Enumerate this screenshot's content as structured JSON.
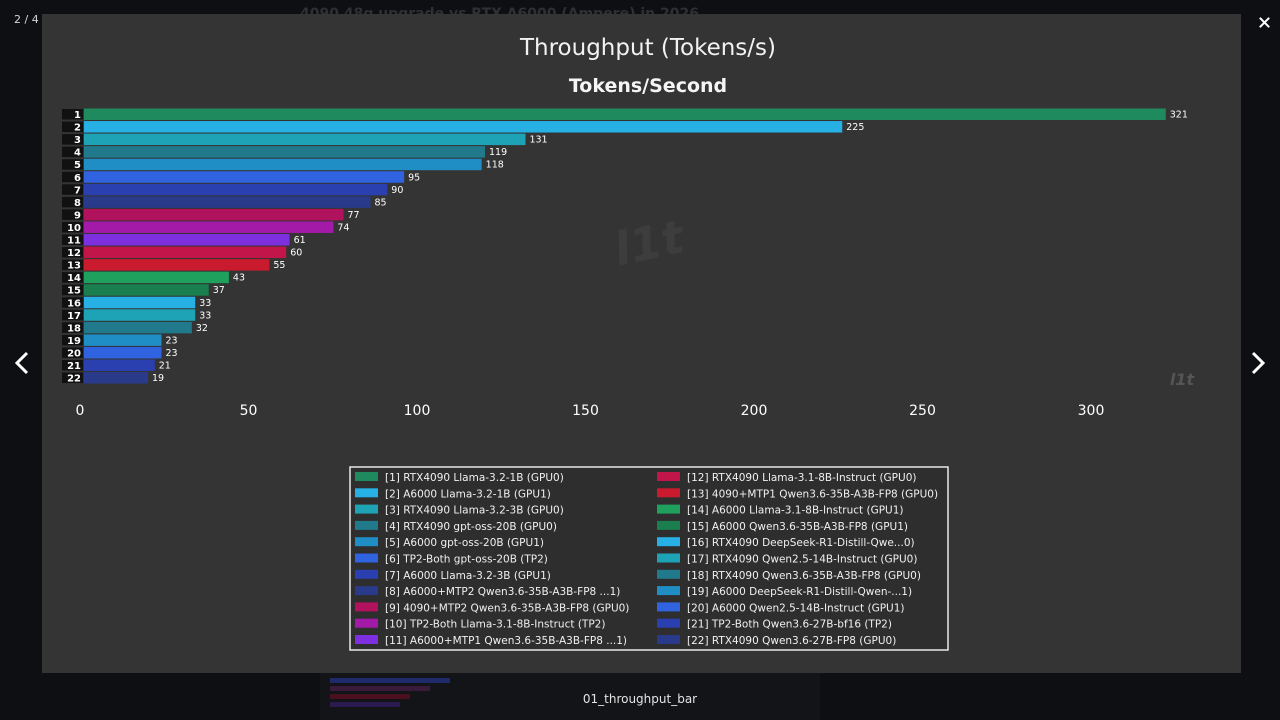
{
  "viewer": {
    "counter": "2 / 4",
    "caption": "01_throughput_bar",
    "background_title": "4090 48g upgrade vs RTX A6000 (Ampere) in 2026"
  },
  "toolbar": [
    {
      "name": "download",
      "icon": "download-icon"
    },
    {
      "name": "image",
      "icon": "image-icon"
    },
    {
      "name": "info",
      "icon": "info-icon"
    },
    {
      "name": "zoom",
      "icon": "zoom-icon"
    },
    {
      "name": "quote",
      "icon": "quote-icon"
    },
    {
      "name": "close",
      "icon": "close-icon"
    }
  ],
  "figure": {
    "suptitle": "Throughput (Tokens/s)",
    "watermark": "l1t"
  },
  "chart_data": {
    "type": "bar",
    "orientation": "horizontal",
    "title": "Tokens/Second",
    "xlim": [
      0,
      325
    ],
    "xticks": [
      0,
      50,
      100,
      150,
      200,
      250,
      300
    ],
    "grid": false,
    "legend_position": "bottom-center",
    "categories": [
      "1",
      "2",
      "3",
      "4",
      "5",
      "6",
      "7",
      "8",
      "9",
      "10",
      "11",
      "12",
      "13",
      "14",
      "15",
      "16",
      "17",
      "18",
      "19",
      "20",
      "21",
      "22"
    ],
    "values": [
      321,
      225,
      131,
      119,
      118,
      95,
      90,
      85,
      77,
      74,
      61,
      60,
      55,
      43,
      37,
      33,
      33,
      32,
      23,
      23,
      21,
      19
    ],
    "colors": [
      "#1f8a5e",
      "#26b0e3",
      "#1ea3b6",
      "#207a8c",
      "#1e8ec4",
      "#2f63e0",
      "#2a3fb0",
      "#293a8a",
      "#b0125e",
      "#a31aa8",
      "#7e2fe0",
      "#c2154a",
      "#c91a2e",
      "#1fa05c",
      "#1a7e4e",
      "#26b0e3",
      "#1ea3b6",
      "#207a8c",
      "#1e8ec4",
      "#2f63e0",
      "#2a3fb0",
      "#293a8a"
    ],
    "legend": [
      "[1] RTX4090 Llama-3.2-1B (GPU0)",
      "[2] A6000 Llama-3.2-1B (GPU1)",
      "[3] RTX4090 Llama-3.2-3B (GPU0)",
      "[4] RTX4090 gpt-oss-20B (GPU0)",
      "[5] A6000 gpt-oss-20B (GPU1)",
      "[6] TP2-Both gpt-oss-20B (TP2)",
      "[7] A6000 Llama-3.2-3B (GPU1)",
      "[8] A6000+MTP2 Qwen3.6-35B-A3B-FP8 ...1)",
      "[9] 4090+MTP2 Qwen3.6-35B-A3B-FP8 (GPU0)",
      "[10] TP2-Both Llama-3.1-8B-Instruct (TP2)",
      "[11] A6000+MTP1 Qwen3.6-35B-A3B-FP8 ...1)",
      "[12] RTX4090 Llama-3.1-8B-Instruct (GPU0)",
      "[13] 4090+MTP1 Qwen3.6-35B-A3B-FP8 (GPU0)",
      "[14] A6000 Llama-3.1-8B-Instruct (GPU1)",
      "[15] A6000 Qwen3.6-35B-A3B-FP8 (GPU1)",
      "[16] RTX4090 DeepSeek-R1-Distill-Qwe...0)",
      "[17] RTX4090 Qwen2.5-14B-Instruct (GPU0)",
      "[18] RTX4090 Qwen3.6-35B-A3B-FP8 (GPU0)",
      "[19] A6000 DeepSeek-R1-Distill-Qwen-...1)",
      "[20] A6000 Qwen2.5-14B-Instruct (GPU1)",
      "[21] TP2-Both Qwen3.6-27B-bf16 (TP2)",
      "[22] RTX4090 Qwen3.6-27B-FP8 (GPU0)"
    ]
  }
}
